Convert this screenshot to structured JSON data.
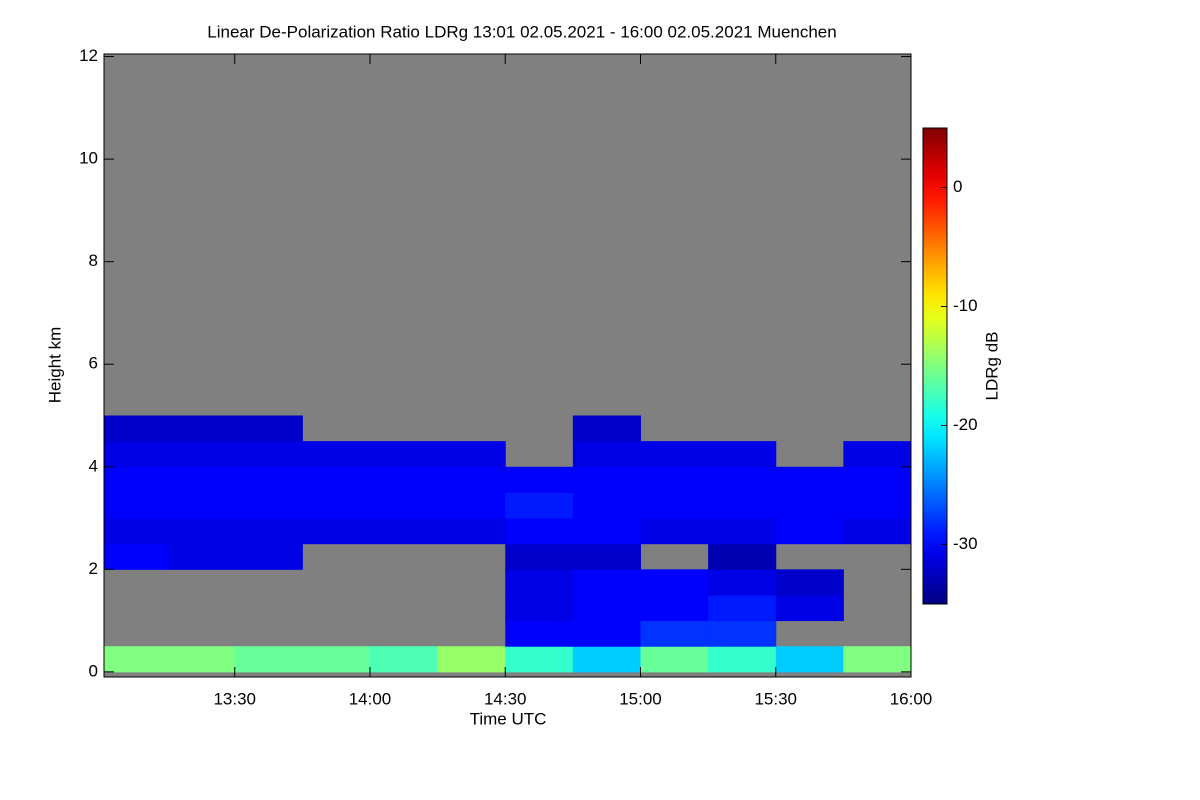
{
  "chart_data": {
    "type": "heatmap",
    "title": "Linear De-Polarization Ratio LDRg   13:01 02.05.2021 - 16:00 02.05.2021 Muenchen",
    "x_label": "Time UTC",
    "y_label": "Height km",
    "background": "#808080",
    "colormap": "jet",
    "x": [
      13.125,
      13.375,
      13.625,
      13.875,
      14.125,
      14.375,
      14.625,
      14.875,
      15.125,
      15.375,
      15.625,
      15.875
    ],
    "y": [
      0.25,
      0.75,
      1.25,
      1.75,
      2.25,
      2.75,
      3.25,
      3.75,
      4.25,
      4.75
    ],
    "z": [
      [
        -15,
        -15,
        -16,
        -16,
        -17,
        -14,
        -18,
        -22,
        -16,
        -18,
        -22,
        -15
      ],
      [
        null,
        null,
        null,
        null,
        null,
        null,
        -30,
        -30,
        -28,
        -28,
        null,
        null
      ],
      [
        null,
        null,
        null,
        null,
        null,
        null,
        -31,
        -30,
        -30,
        -29,
        -31,
        null
      ],
      [
        null,
        null,
        null,
        null,
        null,
        null,
        -31,
        -30,
        -30,
        -31,
        -32,
        null
      ],
      [
        -30,
        -31,
        -31,
        null,
        null,
        null,
        -32,
        -32,
        null,
        -33,
        null,
        null
      ],
      [
        -31,
        -31,
        -31,
        -31,
        -31,
        -31,
        -30,
        -30,
        -31,
        -31,
        -30,
        -31
      ],
      [
        -30,
        -30,
        -30,
        -30,
        -30,
        -30,
        -29,
        -30,
        -30,
        -30,
        -30,
        -30
      ],
      [
        -30,
        -30,
        -30,
        -30,
        -30,
        -30,
        -30,
        -30,
        -30,
        -30,
        -30,
        -30
      ],
      [
        -31,
        -31,
        -31,
        -31,
        -31,
        -31,
        null,
        -31,
        -31,
        -31,
        null,
        -31
      ],
      [
        -32,
        -32,
        -32,
        null,
        null,
        null,
        null,
        -32,
        null,
        null,
        null,
        null
      ]
    ],
    "xlim": [
      13.0167,
      16.0
    ],
    "xticks": [
      {
        "value": 13.5,
        "label": "13:30"
      },
      {
        "value": 14.0,
        "label": "14:00"
      },
      {
        "value": 14.5,
        "label": "14:30"
      },
      {
        "value": 15.0,
        "label": "15:00"
      },
      {
        "value": 15.5,
        "label": "15:30"
      },
      {
        "value": 16.0,
        "label": "16:00"
      }
    ],
    "ylim": [
      -0.1,
      12.05
    ],
    "yticks": [
      0,
      2,
      4,
      6,
      8,
      10,
      12
    ],
    "colorbar": {
      "label": "LDRg dB",
      "lim": [
        -35,
        5
      ],
      "ticks": [
        -30,
        -20,
        -10,
        0
      ]
    }
  }
}
